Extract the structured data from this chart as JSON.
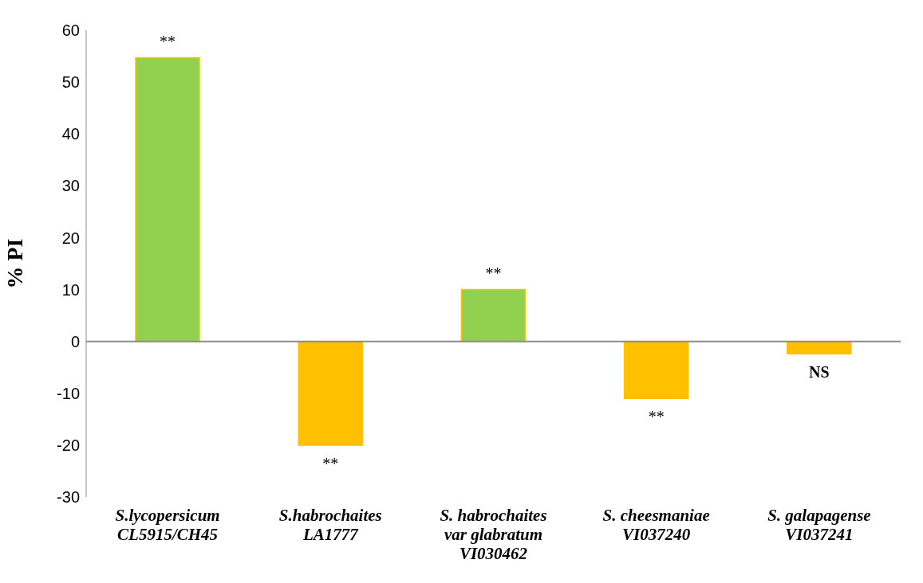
{
  "chart_data": {
    "type": "bar",
    "ylabel": "% PI",
    "categories": [
      "S.lycopersicum\nCL5915/CH45",
      "S.habrochaites\nLA1777",
      "S. habrochaites\nvar glabratum\nVI030462",
      "S. cheesmaniae\nVI037240",
      "S. galapagense\nVI037241"
    ],
    "values": [
      54.7,
      -20,
      10,
      -11,
      -2.4
    ],
    "colors": [
      "#92d050",
      "#ffc000",
      "#92d050",
      "#ffc000",
      "#ffc000"
    ],
    "ylim": [
      -30,
      60
    ],
    "yticks": [
      -30,
      -20,
      -10,
      0,
      10,
      20,
      30,
      40,
      50,
      60
    ],
    "grid": false,
    "ref_lines": [
      {
        "axis": "y",
        "value": 0,
        "color": "#8c8c8c"
      }
    ],
    "annotations": [
      {
        "text": "**",
        "x": "S.lycopersicum\nCL5915/CH45",
        "y": 54.7
      },
      {
        "text": "**",
        "x": "S.habrochaites\nLA1777",
        "y": -20
      },
      {
        "text": "**",
        "x": "S. habrochaites\nvar glabratum\nVI030462",
        "y": 10
      },
      {
        "text": "**",
        "x": "S. cheesmaniae\nVI037240",
        "y": -11
      },
      {
        "text": "NS",
        "x": "S. galapagense\nVI037241",
        "y": -2.4
      }
    ]
  }
}
